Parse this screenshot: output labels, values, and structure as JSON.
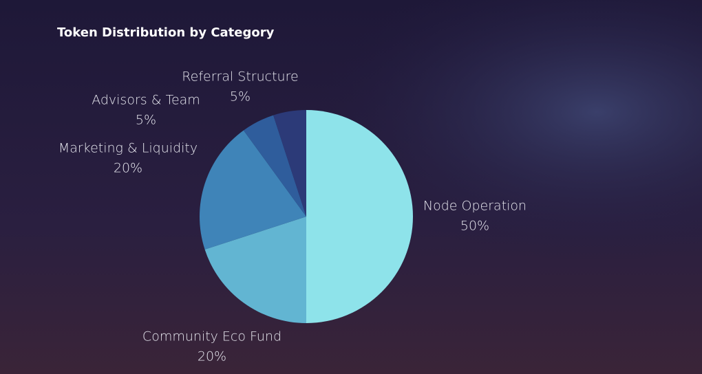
{
  "chart_data": {
    "type": "pie",
    "title": "Token Distribution by Category",
    "categories": [
      "Node Operation",
      "Community Eco Fund",
      "Marketing & Liquidity",
      "Advisors & Team",
      "Referral Structure"
    ],
    "values": [
      50,
      20,
      20,
      5,
      5
    ],
    "value_labels": [
      "50%",
      "20%",
      "20%",
      "5%",
      "5%"
    ],
    "colors": [
      "#8ee3ea",
      "#62b5d2",
      "#3f84b8",
      "#2f5d9c",
      "#2c3a78"
    ]
  }
}
